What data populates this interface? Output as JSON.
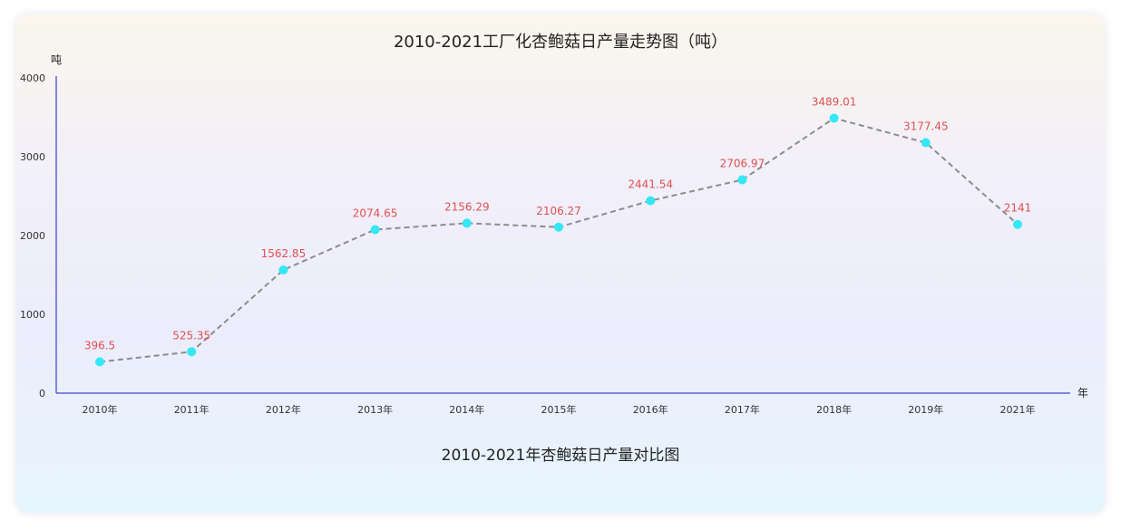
{
  "chart_data": {
    "type": "line",
    "title": "2010-2021工厂化杏鲍菇日产量走势图（吨）",
    "caption": "2010-2021年杏鲍菇日产量对比图",
    "y_unit": "吨",
    "x_unit": "年",
    "categories": [
      "2010年",
      "2011年",
      "2012年",
      "2013年",
      "2014年",
      "2015年",
      "2016年",
      "2017年",
      "2018年",
      "2019年",
      "2021年"
    ],
    "values": [
      396.5,
      525.35,
      1562.85,
      2074.65,
      2156.29,
      2106.27,
      2441.54,
      2706.97,
      3489.01,
      3177.45,
      2141
    ],
    "y_ticks": [
      "0",
      "1000",
      "2000",
      "3000",
      "4000"
    ],
    "ylim": [
      0,
      4000
    ],
    "line_style": "dashed",
    "colors": {
      "line": "#8c8c8c",
      "marker": "#33e8f5",
      "label": "#e05050",
      "axis": "#5a63d6"
    }
  }
}
